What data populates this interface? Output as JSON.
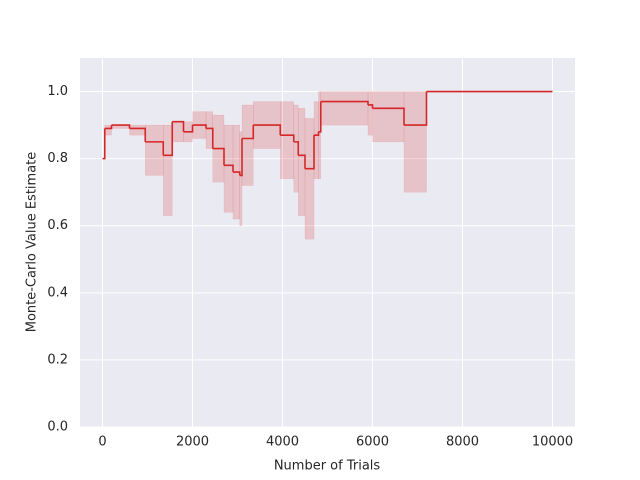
{
  "chart_data": {
    "type": "line",
    "drawstyle": "steps-post",
    "xlabel": "Number of Trials",
    "ylabel": "Monte-Carlo Value Estimate",
    "x": [
      0,
      50,
      200,
      600,
      950,
      1350,
      1550,
      1800,
      2000,
      2300,
      2450,
      2700,
      2900,
      3050,
      3100,
      3350,
      3950,
      4250,
      4350,
      4500,
      4700,
      4800,
      4850,
      5900,
      6000,
      6700,
      7200,
      10000
    ],
    "values": [
      0.8,
      0.89,
      0.9,
      0.89,
      0.85,
      0.81,
      0.91,
      0.88,
      0.9,
      0.89,
      0.83,
      0.78,
      0.76,
      0.75,
      0.86,
      0.9,
      0.87,
      0.85,
      0.81,
      0.77,
      0.87,
      0.88,
      0.97,
      0.96,
      0.95,
      0.9,
      1.0,
      1.0
    ],
    "lower": [
      0.8,
      0.87,
      0.89,
      0.87,
      0.75,
      0.63,
      0.85,
      0.85,
      0.86,
      0.83,
      0.73,
      0.64,
      0.62,
      0.6,
      0.72,
      0.83,
      0.74,
      0.7,
      0.63,
      0.56,
      0.74,
      0.74,
      0.9,
      0.87,
      0.85,
      0.7,
      1.0,
      1.0
    ],
    "upper": [
      0.8,
      0.9,
      0.9,
      0.9,
      0.9,
      0.9,
      0.91,
      0.91,
      0.94,
      0.94,
      0.93,
      0.9,
      0.9,
      0.88,
      0.96,
      0.97,
      0.97,
      0.96,
      0.95,
      0.92,
      0.97,
      1.0,
      1.0,
      1.0,
      1.0,
      1.0,
      1.0,
      1.0
    ],
    "color": "#d62728",
    "xlim": [
      -500,
      10500
    ],
    "ylim": [
      0,
      1.1
    ],
    "xticks": [
      0,
      2000,
      4000,
      6000,
      8000,
      10000
    ],
    "yticks": [
      {
        "value": 0,
        "label": "0.0"
      },
      0.2,
      0.4,
      0.6,
      0.8,
      {
        "value": 1,
        "label": "1.0"
      }
    ],
    "grid": true
  }
}
